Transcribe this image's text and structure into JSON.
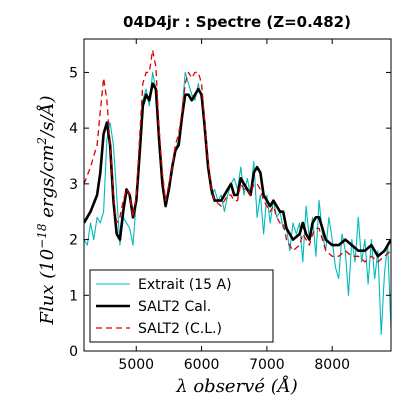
{
  "chart_data": {
    "type": "line",
    "title": "04D4jr : Spectre (Z=0.482)",
    "xlabel": "λ observé (Å)",
    "ylabel": "Flux (10^-18 ergs/cm^2/s/Å)",
    "xlim": [
      4200,
      8900
    ],
    "ylim": [
      0,
      5.6
    ],
    "xticks": [
      "5000",
      "6000",
      "7000",
      "8000"
    ],
    "yticks": [
      "0",
      "1",
      "2",
      "3",
      "4",
      "5"
    ],
    "grid": false,
    "legend_position": "lower-left",
    "series": [
      {
        "name": "Extrait (15 A)",
        "color": "#00bbbb",
        "style": "solid-thin",
        "x": [
          4200,
          4250,
          4300,
          4350,
          4400,
          4450,
          4500,
          4550,
          4600,
          4650,
          4700,
          4750,
          4800,
          4850,
          4900,
          4950,
          5000,
          5050,
          5100,
          5150,
          5200,
          5250,
          5300,
          5350,
          5400,
          5450,
          5500,
          5550,
          5600,
          5650,
          5700,
          5750,
          5800,
          5850,
          5900,
          5950,
          6000,
          6050,
          6100,
          6150,
          6200,
          6250,
          6300,
          6350,
          6400,
          6450,
          6500,
          6550,
          6600,
          6650,
          6700,
          6750,
          6800,
          6850,
          6900,
          6950,
          7000,
          7050,
          7100,
          7150,
          7200,
          7250,
          7300,
          7350,
          7400,
          7450,
          7500,
          7550,
          7600,
          7650,
          7700,
          7750,
          7800,
          7850,
          7900,
          7950,
          8000,
          8050,
          8100,
          8150,
          8200,
          8250,
          8300,
          8350,
          8400,
          8450,
          8500,
          8550,
          8600,
          8650,
          8700,
          8750,
          8800,
          8850,
          8900
        ],
        "y": [
          2.0,
          1.9,
          2.3,
          2.0,
          2.4,
          2.3,
          2.5,
          3.8,
          4.1,
          3.7,
          2.8,
          1.9,
          2.4,
          2.3,
          2.2,
          1.9,
          2.7,
          3.6,
          4.5,
          4.7,
          4.4,
          5.0,
          4.7,
          3.6,
          3.0,
          2.6,
          2.9,
          3.2,
          3.6,
          3.8,
          4.3,
          5.0,
          4.8,
          4.6,
          4.5,
          4.8,
          4.5,
          3.9,
          3.3,
          2.8,
          2.9,
          2.7,
          2.8,
          2.5,
          2.8,
          3.0,
          3.1,
          2.9,
          3.3,
          2.8,
          3.1,
          2.8,
          3.4,
          2.4,
          2.8,
          2.1,
          2.8,
          2.3,
          2.7,
          2.4,
          2.5,
          2.2,
          2.2,
          1.8,
          2.3,
          2.1,
          2.3,
          1.6,
          2.6,
          2.0,
          2.4,
          1.7,
          2.7,
          2.1,
          1.8,
          2.4,
          2.0,
          1.5,
          1.3,
          2.1,
          1.8,
          1.0,
          2.0,
          1.6,
          2.4,
          1.6,
          2.0,
          1.2,
          2.0,
          1.3,
          1.8,
          0.3,
          1.4,
          1.9,
          0.4
        ]
      },
      {
        "name": "SALT2 Cal.",
        "color": "#000000",
        "style": "solid-thick",
        "x": [
          4200,
          4300,
          4400,
          4450,
          4500,
          4550,
          4600,
          4650,
          4700,
          4750,
          4800,
          4850,
          4900,
          4950,
          5000,
          5050,
          5100,
          5150,
          5200,
          5250,
          5300,
          5350,
          5400,
          5450,
          5500,
          5550,
          5600,
          5650,
          5700,
          5750,
          5800,
          5850,
          5900,
          5950,
          6000,
          6050,
          6100,
          6150,
          6200,
          6300,
          6400,
          6450,
          6500,
          6550,
          6600,
          6650,
          6700,
          6750,
          6800,
          6850,
          6900,
          6950,
          7000,
          7050,
          7100,
          7150,
          7200,
          7250,
          7300,
          7400,
          7500,
          7550,
          7600,
          7650,
          7700,
          7750,
          7800,
          7850,
          7900,
          8000,
          8100,
          8200,
          8300,
          8400,
          8500,
          8600,
          8700,
          8800,
          8900
        ],
        "y": [
          2.3,
          2.5,
          2.8,
          3.2,
          3.9,
          4.1,
          3.7,
          2.7,
          2.1,
          2.0,
          2.5,
          2.9,
          2.8,
          2.4,
          2.7,
          3.5,
          4.4,
          4.6,
          4.5,
          4.8,
          4.7,
          3.8,
          3.0,
          2.6,
          2.9,
          3.3,
          3.6,
          3.7,
          4.2,
          4.6,
          4.6,
          4.5,
          4.6,
          4.7,
          4.6,
          4.0,
          3.3,
          2.9,
          2.7,
          2.7,
          2.9,
          3.0,
          2.8,
          2.8,
          3.1,
          3.0,
          2.9,
          2.8,
          3.2,
          3.3,
          3.2,
          2.8,
          2.7,
          2.6,
          2.7,
          2.6,
          2.5,
          2.5,
          2.2,
          2.0,
          2.1,
          2.3,
          2.1,
          2.0,
          2.3,
          2.4,
          2.4,
          2.2,
          2.0,
          1.9,
          1.9,
          2.0,
          1.9,
          1.8,
          1.8,
          1.9,
          1.7,
          1.8,
          2.0
        ]
      },
      {
        "name": "SALT2 (C.L.)",
        "color": "#dd0000",
        "style": "dashed",
        "x": [
          4200,
          4300,
          4400,
          4450,
          4500,
          4550,
          4600,
          4650,
          4700,
          4750,
          4800,
          4850,
          4900,
          4950,
          5000,
          5050,
          5100,
          5150,
          5200,
          5250,
          5300,
          5350,
          5400,
          5450,
          5500,
          5550,
          5600,
          5650,
          5700,
          5750,
          5800,
          5850,
          5900,
          5950,
          6000,
          6050,
          6100,
          6150,
          6200,
          6300,
          6400,
          6450,
          6500,
          6550,
          6600,
          6650,
          6700,
          6750,
          6800,
          6850,
          6900,
          6950,
          7000,
          7050,
          7100,
          7150,
          7200,
          7250,
          7300,
          7400,
          7500,
          7550,
          7600,
          7650,
          7700,
          7750,
          7800,
          7850,
          7900,
          8000,
          8100,
          8200,
          8300,
          8400,
          8500,
          8600,
          8700,
          8800,
          8900
        ],
        "y": [
          3.0,
          3.3,
          3.7,
          4.3,
          4.9,
          4.5,
          3.7,
          2.8,
          2.3,
          2.4,
          2.7,
          2.9,
          2.8,
          2.4,
          2.8,
          3.8,
          4.8,
          5.0,
          5.0,
          5.4,
          5.1,
          4.0,
          3.2,
          2.7,
          3.0,
          3.3,
          3.7,
          3.9,
          4.3,
          4.8,
          5.0,
          4.9,
          5.0,
          5.0,
          4.8,
          4.1,
          3.4,
          2.9,
          2.7,
          2.6,
          2.8,
          2.8,
          2.7,
          2.7,
          3.0,
          2.9,
          2.9,
          2.8,
          3.0,
          3.0,
          2.9,
          2.7,
          2.6,
          2.5,
          2.6,
          2.4,
          2.3,
          2.3,
          2.0,
          1.8,
          1.9,
          2.1,
          2.0,
          1.9,
          2.1,
          2.2,
          2.2,
          2.0,
          1.8,
          1.7,
          1.7,
          1.8,
          1.7,
          1.7,
          1.6,
          1.7,
          1.6,
          1.7,
          1.8
        ]
      }
    ]
  }
}
